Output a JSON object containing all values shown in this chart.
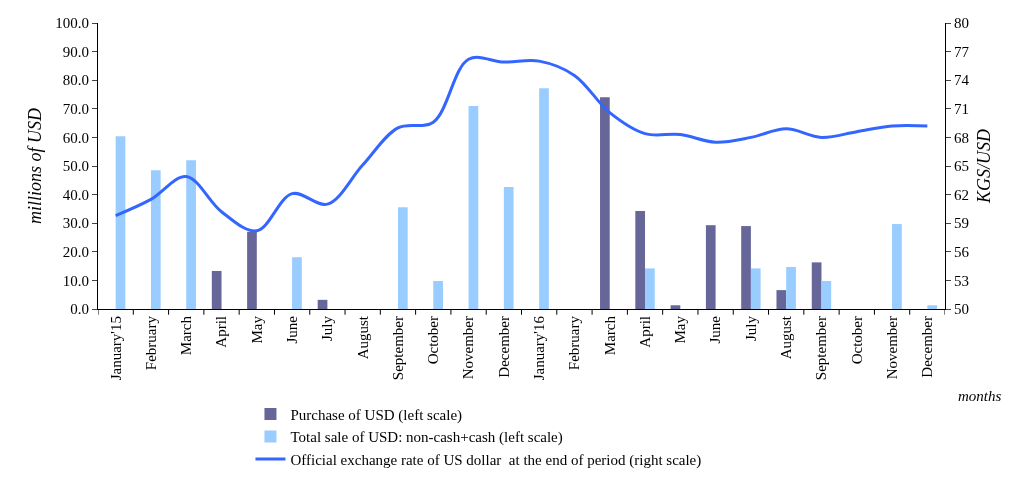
{
  "chart_data": {
    "type": "bar",
    "ylabel": "millions of USD",
    "y2label": "KGS/USD",
    "annotations": [
      "months"
    ],
    "categories": [
      "January'15",
      "February",
      "March",
      "April",
      "May",
      "June",
      "July",
      "August",
      "September",
      "October",
      "November",
      "December",
      "January'16",
      "February",
      "March",
      "April",
      "May",
      "June",
      "July",
      "August",
      "September",
      "October",
      "November",
      "December"
    ],
    "series": [
      {
        "name": "Purchase of USD (left scale)",
        "color": "#666699",
        "values": [
          null,
          null,
          null,
          13.3,
          27.0,
          null,
          3.2,
          null,
          null,
          null,
          null,
          null,
          null,
          null,
          74.0,
          34.3,
          1.3,
          29.3,
          29.0,
          6.6,
          16.3,
          null,
          null,
          null
        ]
      },
      {
        "name": "Total sale of USD: non-cash+cash (left scale)",
        "color": "#99ccff",
        "values": [
          60.4,
          48.5,
          52.0,
          null,
          null,
          18.1,
          null,
          null,
          35.6,
          9.8,
          71.0,
          42.7,
          77.2,
          null,
          null,
          14.2,
          null,
          null,
          14.2,
          14.7,
          9.8,
          null,
          29.7,
          1.3
        ]
      },
      {
        "name": "Official exchange rate of US dollar  at the end of period (right scale)",
        "type": "line",
        "axis": "y2",
        "color": "#3366ff",
        "values": [
          59.8,
          61.5,
          63.9,
          60.2,
          58.2,
          62.1,
          61.0,
          65.1,
          69.0,
          69.6,
          76.2,
          75.9,
          76.0,
          74.5,
          70.6,
          68.4,
          68.3,
          67.5,
          68.0,
          68.9,
          68.0,
          68.6,
          69.2,
          69.2
        ]
      }
    ],
    "ylim": [
      0,
      100
    ],
    "yticks": [
      {
        "value": 0,
        "label": "0.0"
      },
      {
        "value": 10,
        "label": "10.0"
      },
      {
        "value": 20,
        "label": "20.0"
      },
      {
        "value": 30,
        "label": "30.0"
      },
      {
        "value": 40,
        "label": "40.0"
      },
      {
        "value": 50,
        "label": "50.0"
      },
      {
        "value": 60,
        "label": "60.0"
      },
      {
        "value": 70,
        "label": "70.0"
      },
      {
        "value": 80,
        "label": "80.0"
      },
      {
        "value": 90,
        "label": "90.0"
      },
      {
        "value": 100,
        "label": "100.0"
      }
    ],
    "y2lim": [
      50,
      80
    ],
    "y2ticks": [
      50,
      53,
      56,
      59,
      62,
      65,
      68,
      71,
      74,
      77,
      80
    ],
    "legend": "bottom",
    "marker": "none",
    "line_style": "solid"
  }
}
